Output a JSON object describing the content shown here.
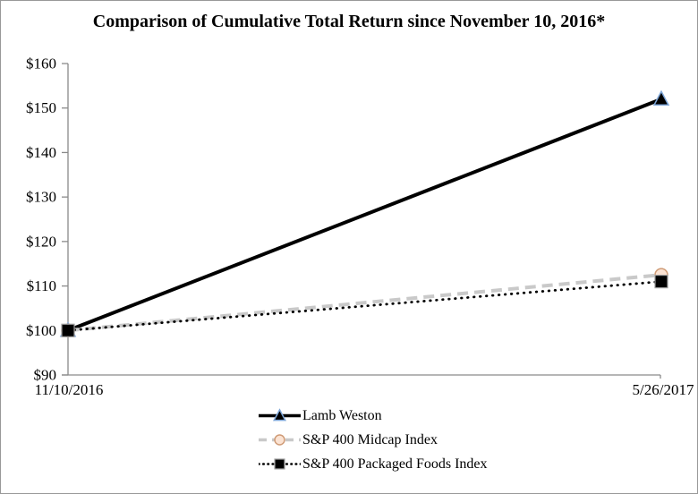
{
  "page": {
    "background": "#ffffff",
    "border_color": "#999999"
  },
  "chart_data": {
    "type": "line",
    "title": "Comparison of Cumulative Total Return since November 10, 2016*",
    "x_categories": [
      "11/10/2016",
      "5/26/2017"
    ],
    "ylim": [
      90,
      160
    ],
    "y_ticks": [
      {
        "label": "$160",
        "value": 160
      },
      {
        "label": "$150",
        "value": 150
      },
      {
        "label": "$140",
        "value": 140
      },
      {
        "label": "$130",
        "value": 130
      },
      {
        "label": "$120",
        "value": 120
      },
      {
        "label": "$110",
        "value": 110
      },
      {
        "label": "$100",
        "value": 100
      },
      {
        "label": "$90",
        "value": 90
      }
    ],
    "grid": false,
    "legend_position": "bottom-center",
    "axis_color": "#8a8a8a",
    "series": [
      {
        "name": "Lamb Weston",
        "values": [
          100,
          152
        ],
        "line_style": "solid",
        "line_color": "#000000",
        "line_width": 4,
        "marker": "triangle",
        "marker_fill": "#000000",
        "marker_stroke": "#7ea6d8"
      },
      {
        "name": "S&P 400 Midcap Index",
        "values": [
          100,
          112.5
        ],
        "line_style": "dashed",
        "line_color": "#c9c9c9",
        "line_width": 4,
        "marker": "circle",
        "marker_fill": "#fbe3d3",
        "marker_stroke": "#cf9b76"
      },
      {
        "name": "S&P 400 Packaged Foods Index",
        "values": [
          100,
          111
        ],
        "line_style": "dotted",
        "line_color": "#000000",
        "line_width": 2.8,
        "marker": "square",
        "marker_fill": "#000000",
        "marker_stroke": "#9e9e9e"
      }
    ]
  }
}
